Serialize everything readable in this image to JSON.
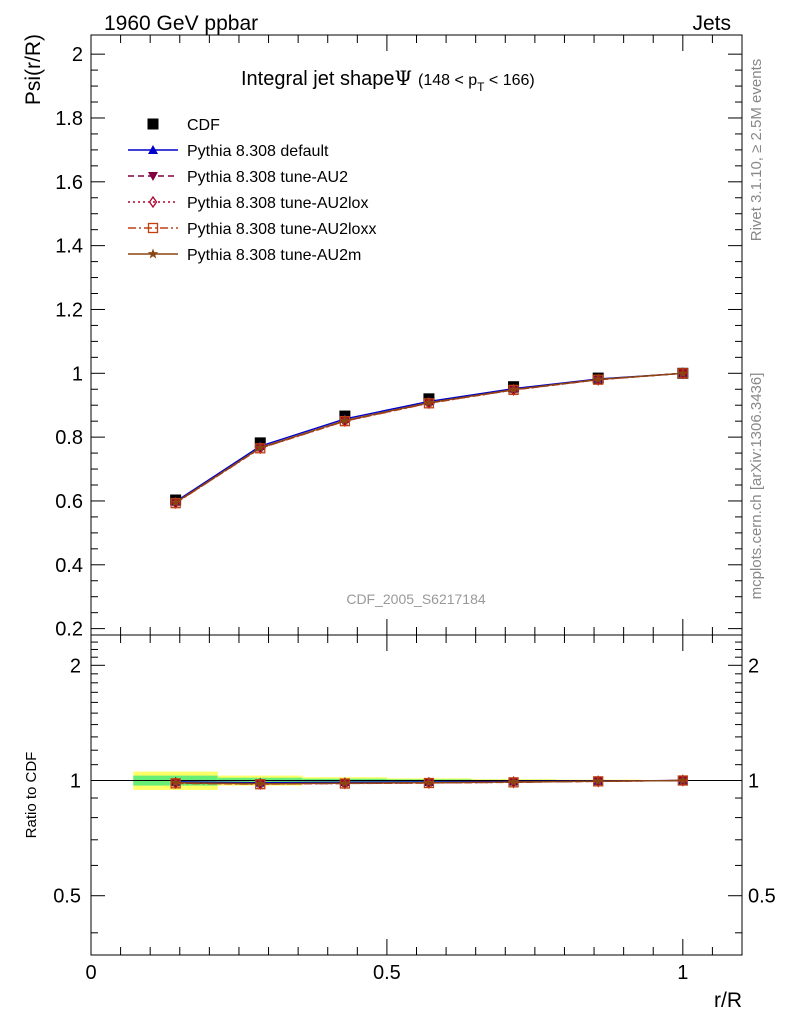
{
  "header": {
    "left": "1960 GeV ppbar",
    "right": "Jets",
    "side_rivet": "Rivet 3.1.10, ≥ 2.5M events",
    "side_mcplots": "mcplots.cern.ch [arXiv:1306.3436]"
  },
  "main_title": {
    "text": "Integral jet shape",
    "psi": "Ψ",
    "range_open": "(148 < p",
    "range_sub": "T",
    "range_close": " < 166)"
  },
  "analysis_label": "CDF_2005_S6217184",
  "colors": {
    "CDF": "#000000",
    "default": "#0000cc",
    "AU2": "#800040",
    "AU2lox": "#b00030",
    "AU2loxx": "#c04010",
    "AU2m": "#8b4513",
    "band_green": "#66ee77",
    "band_yellow": "#ffff66"
  },
  "chart_data": [
    {
      "type": "line",
      "ylabel": "Psi(r/R)",
      "xlim": [
        0,
        1.1
      ],
      "ylim": [
        0.18,
        2.06
      ],
      "yticks": [
        0.2,
        0.4,
        0.6,
        0.8,
        1,
        1.2,
        1.4,
        1.6,
        1.8,
        2
      ],
      "x": [
        0.143,
        0.286,
        0.429,
        0.571,
        0.714,
        0.857,
        1.0
      ],
      "series": [
        {
          "name": "CDF",
          "key": "CDF",
          "marker": "square",
          "style": "none",
          "values": [
            0.603,
            0.782,
            0.866,
            0.92,
            0.958,
            0.985,
            1.0
          ]
        },
        {
          "name": "Pythia 8.308 default",
          "key": "default",
          "marker": "triangle-up",
          "style": "solid",
          "values": [
            0.598,
            0.772,
            0.857,
            0.912,
            0.952,
            0.982,
            1.0
          ]
        },
        {
          "name": "Pythia 8.308 tune-AU2",
          "key": "AU2",
          "marker": "triangle-down",
          "style": "dashed",
          "values": [
            0.594,
            0.766,
            0.851,
            0.907,
            0.948,
            0.98,
            1.0
          ]
        },
        {
          "name": "Pythia 8.308 tune-AU2lox",
          "key": "AU2lox",
          "marker": "diamond",
          "style": "dotted",
          "values": [
            0.594,
            0.766,
            0.851,
            0.907,
            0.948,
            0.98,
            1.0
          ]
        },
        {
          "name": "Pythia 8.308 tune-AU2loxx",
          "key": "AU2loxx",
          "marker": "square-open",
          "style": "dashdot",
          "values": [
            0.593,
            0.765,
            0.85,
            0.906,
            0.948,
            0.98,
            1.0
          ]
        },
        {
          "name": "Pythia 8.308 tune-AU2m",
          "key": "AU2m",
          "marker": "star",
          "style": "solid",
          "values": [
            0.595,
            0.767,
            0.852,
            0.908,
            0.949,
            0.981,
            1.0
          ]
        }
      ]
    },
    {
      "type": "line",
      "xlabel": "r/R",
      "ylabel": "Ratio to CDF",
      "xlim": [
        0,
        1.1
      ],
      "ylim": [
        0.35,
        2.4
      ],
      "yticks": [
        0.5,
        1,
        2
      ],
      "xticks": [
        0,
        0.5,
        1
      ],
      "x": [
        0.143,
        0.286,
        0.429,
        0.571,
        0.714,
        0.857,
        1.0
      ],
      "bands": {
        "x_edges": [
          0.0714,
          0.2143,
          0.3571,
          0.5,
          0.6429,
          0.7857,
          0.9286,
          1.0
        ],
        "yellow": [
          0.055,
          0.03,
          0.02,
          0.013,
          0.008,
          0.005,
          0.0
        ],
        "green": [
          0.03,
          0.017,
          0.011,
          0.007,
          0.004,
          0.003,
          0.0
        ]
      },
      "series": [
        {
          "name": "Pythia 8.308 default",
          "key": "default",
          "values": [
            0.992,
            0.987,
            0.99,
            0.991,
            0.994,
            0.997,
            1.0
          ]
        },
        {
          "name": "Pythia 8.308 tune-AU2",
          "key": "AU2",
          "values": [
            0.985,
            0.98,
            0.983,
            0.986,
            0.99,
            0.995,
            1.0
          ]
        },
        {
          "name": "Pythia 8.308 tune-AU2lox",
          "key": "AU2lox",
          "values": [
            0.985,
            0.98,
            0.983,
            0.986,
            0.99,
            0.995,
            1.0
          ]
        },
        {
          "name": "Pythia 8.308 tune-AU2loxx",
          "key": "AU2loxx",
          "values": [
            0.983,
            0.978,
            0.982,
            0.985,
            0.989,
            0.995,
            1.0
          ]
        },
        {
          "name": "Pythia 8.308 tune-AU2m",
          "key": "AU2m",
          "values": [
            0.987,
            0.981,
            0.984,
            0.987,
            0.991,
            0.996,
            1.0
          ]
        }
      ]
    }
  ]
}
